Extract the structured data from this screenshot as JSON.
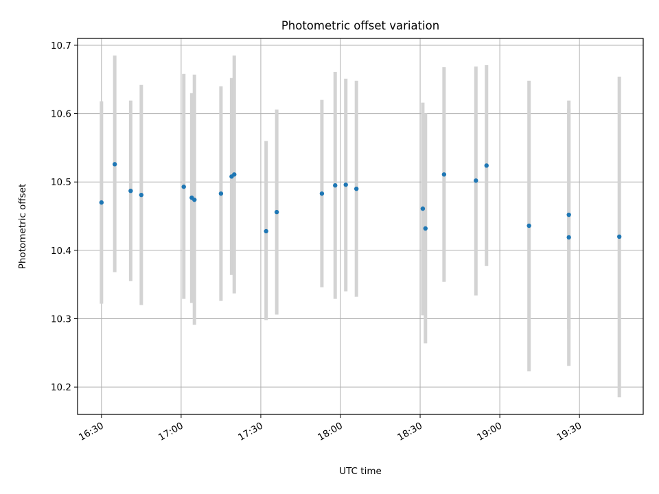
{
  "chart_data": {
    "type": "scatter",
    "title": "Photometric offset variation",
    "xlabel": "UTC time",
    "ylabel": "Photometric offset",
    "x_ticks": [
      "16:30",
      "17:00",
      "17:30",
      "18:00",
      "18:30",
      "19:00",
      "19:30"
    ],
    "y_ticks": [
      "10.2",
      "10.3",
      "10.4",
      "10.5",
      "10.6",
      "10.7"
    ],
    "xlim": [
      "16:21",
      "19:54"
    ],
    "ylim": [
      10.16,
      10.71
    ],
    "grid": true,
    "error_bar_color": "#d3d3d3",
    "marker_color": "#1f77b4",
    "series": [
      {
        "points": [
          {
            "x": "16:30",
            "y": 10.47,
            "ylow": 10.322,
            "yhigh": 10.618
          },
          {
            "x": "16:35",
            "y": 10.526,
            "ylow": 10.368,
            "yhigh": 10.685
          },
          {
            "x": "16:41",
            "y": 10.487,
            "ylow": 10.355,
            "yhigh": 10.619
          },
          {
            "x": "16:45",
            "y": 10.481,
            "ylow": 10.32,
            "yhigh": 10.642
          },
          {
            "x": "17:01",
            "y": 10.493,
            "ylow": 10.329,
            "yhigh": 10.658
          },
          {
            "x": "17:04",
            "y": 10.477,
            "ylow": 10.323,
            "yhigh": 10.63
          },
          {
            "x": "17:05",
            "y": 10.474,
            "ylow": 10.291,
            "yhigh": 10.657
          },
          {
            "x": "17:15",
            "y": 10.483,
            "ylow": 10.326,
            "yhigh": 10.64
          },
          {
            "x": "17:19",
            "y": 10.508,
            "ylow": 10.364,
            "yhigh": 10.652
          },
          {
            "x": "17:20",
            "y": 10.511,
            "ylow": 10.337,
            "yhigh": 10.685
          },
          {
            "x": "17:32",
            "y": 10.428,
            "ylow": 10.298,
            "yhigh": 10.56
          },
          {
            "x": "17:36",
            "y": 10.456,
            "ylow": 10.306,
            "yhigh": 10.606
          },
          {
            "x": "17:53",
            "y": 10.483,
            "ylow": 10.346,
            "yhigh": 10.62
          },
          {
            "x": "17:58",
            "y": 10.495,
            "ylow": 10.329,
            "yhigh": 10.661
          },
          {
            "x": "18:02",
            "y": 10.496,
            "ylow": 10.34,
            "yhigh": 10.651
          },
          {
            "x": "18:06",
            "y": 10.49,
            "ylow": 10.332,
            "yhigh": 10.648
          },
          {
            "x": "18:31",
            "y": 10.461,
            "ylow": 10.305,
            "yhigh": 10.616
          },
          {
            "x": "18:32",
            "y": 10.432,
            "ylow": 10.264,
            "yhigh": 10.6
          },
          {
            "x": "18:39",
            "y": 10.511,
            "ylow": 10.354,
            "yhigh": 10.668
          },
          {
            "x": "18:51",
            "y": 10.502,
            "ylow": 10.334,
            "yhigh": 10.669
          },
          {
            "x": "18:55",
            "y": 10.524,
            "ylow": 10.377,
            "yhigh": 10.671
          },
          {
            "x": "19:11",
            "y": 10.436,
            "ylow": 10.223,
            "yhigh": 10.648
          },
          {
            "x": "19:26",
            "y": 10.419,
            "ylow": 10.231,
            "yhigh": 10.607
          },
          {
            "x": "19:26",
            "y": 10.452,
            "ylow": 10.285,
            "yhigh": 10.619
          },
          {
            "x": "19:45",
            "y": 10.42,
            "ylow": 10.185,
            "yhigh": 10.654
          }
        ]
      }
    ]
  }
}
